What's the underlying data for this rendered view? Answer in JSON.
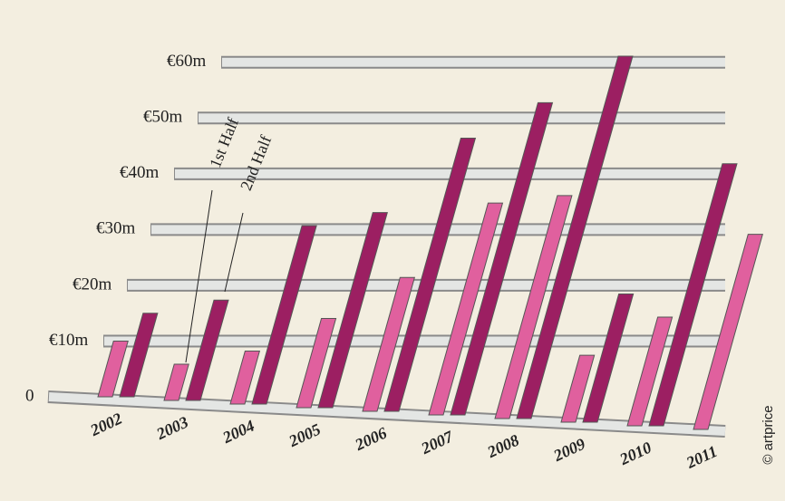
{
  "chart_data": {
    "type": "bar",
    "categories": [
      "2002",
      "2003",
      "2004",
      "2005",
      "2006",
      "2007",
      "2008",
      "2009",
      "2010",
      "2011"
    ],
    "series": [
      {
        "name": "1st Half",
        "color": "#e0609e",
        "values": [
          10,
          6.5,
          9.5,
          16,
          24,
          38,
          40,
          12,
          19.5,
          35
        ]
      },
      {
        "name": "2nd Half",
        "color": "#9c1f62",
        "values": [
          15,
          18,
          32,
          35,
          49,
          56,
          65,
          23,
          47,
          null
        ]
      }
    ],
    "ylim": [
      0,
      65
    ],
    "yticks": [
      0,
      {
        "value": 10,
        "label": "€10m"
      },
      {
        "value": 20,
        "label": "€20m"
      },
      {
        "value": 30,
        "label": "€30m"
      },
      {
        "value": 40,
        "label": "€40m"
      },
      {
        "value": 50,
        "label": "€50m"
      },
      {
        "value": 60,
        "label": "€60m"
      }
    ],
    "credit": "© artprice"
  }
}
